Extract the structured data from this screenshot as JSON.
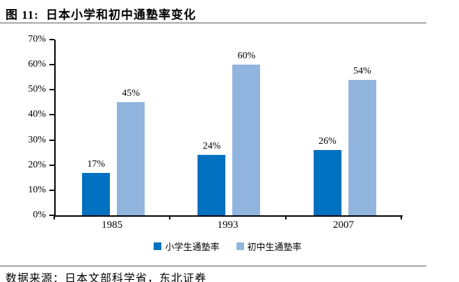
{
  "header": {
    "figure_label": "图 11:",
    "title": "日本小学和初中通塾率变化"
  },
  "chart_data": {
    "type": "bar",
    "title": "日本小学和初中通塾率变化",
    "xlabel": "",
    "ylabel": "",
    "categories": [
      "1985",
      "1993",
      "2007"
    ],
    "series": [
      {
        "name": "小学生通塾率",
        "color": "#0070C0",
        "values": [
          17,
          24,
          26
        ],
        "labels": [
          "17%",
          "24%",
          "26%"
        ]
      },
      {
        "name": "初中生通塾率",
        "color": "#92B5DF",
        "values": [
          45,
          60,
          54
        ],
        "labels": [
          "45%",
          "60%",
          "54%"
        ]
      }
    ],
    "ylim": [
      0,
      70
    ],
    "ytick_step": 10,
    "ytick_labels": [
      "0%",
      "10%",
      "20%",
      "30%",
      "40%",
      "50%",
      "60%",
      "70%"
    ],
    "grid": false,
    "legend_position": "bottom"
  },
  "footer": {
    "source": "数据来源：日本文部科学省，东北证券"
  },
  "colors": {
    "series_primary": "#0070C0",
    "series_secondary": "#92B5DF",
    "rule": "#a6a6a6",
    "axis": "#000000"
  }
}
